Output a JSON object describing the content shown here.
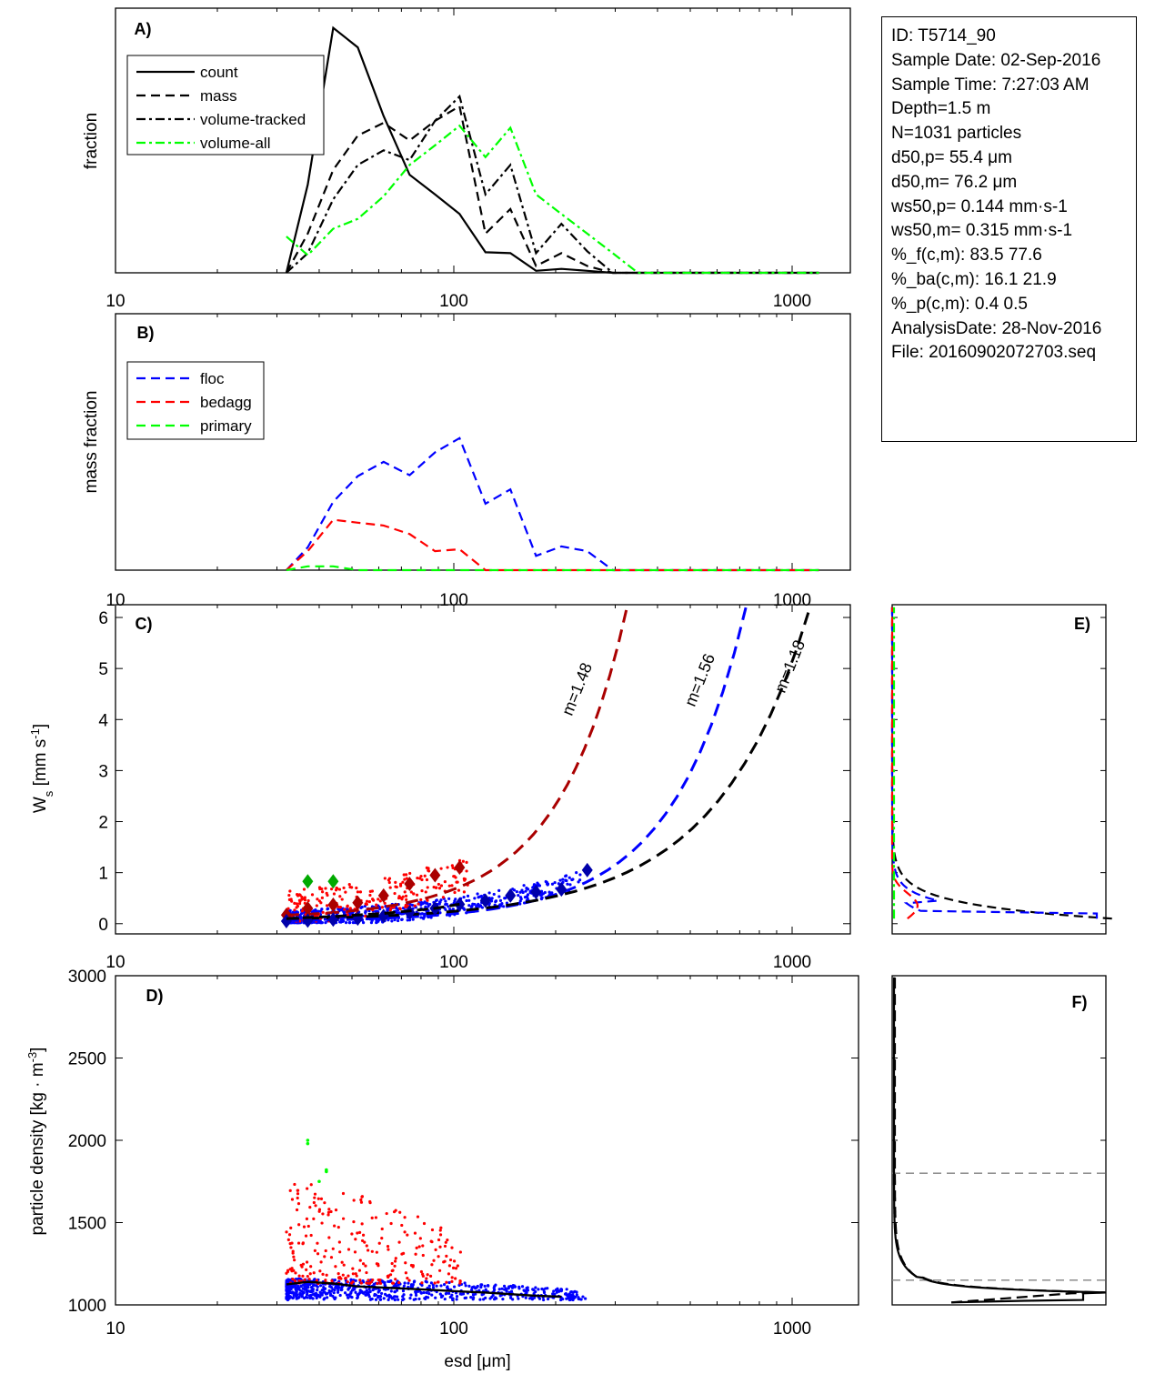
{
  "colors": {
    "black": "#000000",
    "blue": "#0000ff",
    "red": "#ff0000",
    "green": "#00ff00",
    "darkred": "#aa0000",
    "darkblue": "#0000aa",
    "gray": "#808080"
  },
  "info_box": [
    "ID: T5714_90",
    "Sample Date: 02-Sep-2016",
    "Sample Time:  7:27:03 AM",
    "Depth=1.5 m",
    "N=1031 particles",
    "d50,p=  55.4 μm",
    "d50,m=  76.2 μm",
    "ws50,p= 0.144 mm·s-1",
    "ws50,m= 0.315 mm·s-1",
    "%_f(c,m): 83.5 77.6",
    "%_ba(c,m): 16.1 21.9",
    "%_p(c,m): 0.4 0.5",
    "AnalysisDate: 28-Nov-2016",
    "File: 20160902072703.seq"
  ],
  "chart_data": [
    {
      "panel": "A)",
      "type": "line",
      "ylabel": "fraction",
      "xscale": "log",
      "xlim": [
        10,
        1500
      ],
      "ylim": [
        0,
        0.27
      ],
      "xticks": [
        "10",
        "100",
        "1000"
      ],
      "legend": [
        "count",
        "mass",
        "volume-tracked",
        "volume-all"
      ],
      "series": [
        {
          "name": "count",
          "color": "#000000",
          "dash": "solid",
          "x": [
            32,
            37,
            44,
            52,
            62,
            74,
            88,
            104,
            124,
            147,
            175,
            208,
            248,
            295,
            350,
            420,
            500,
            600,
            720,
            860,
            1000,
            1200
          ],
          "values": [
            0,
            0.09,
            0.25,
            0.23,
            0.16,
            0.1,
            0.08,
            0.06,
            0.021,
            0.02,
            0.002,
            0.004,
            0.002,
            0,
            0,
            0,
            0,
            0,
            0,
            0,
            0,
            0
          ]
        },
        {
          "name": "mass",
          "color": "#000000",
          "dash": "dash",
          "x": [
            32,
            37,
            44,
            52,
            62,
            74,
            88,
            104,
            124,
            147,
            175,
            208,
            248,
            295,
            350,
            420,
            500,
            600,
            720,
            860,
            1000,
            1200
          ],
          "values": [
            0,
            0.04,
            0.105,
            0.14,
            0.153,
            0.135,
            0.155,
            0.17,
            0.04,
            0.065,
            0.007,
            0.02,
            0.007,
            0,
            0,
            0,
            0,
            0,
            0,
            0,
            0,
            0
          ]
        },
        {
          "name": "volume-tracked",
          "color": "#000000",
          "dash": "dashdot",
          "x": [
            32,
            37,
            44,
            52,
            62,
            74,
            88,
            104,
            124,
            147,
            175,
            208,
            248,
            295,
            350,
            420,
            500,
            600,
            720,
            860,
            1000,
            1200
          ],
          "values": [
            0,
            0.02,
            0.075,
            0.11,
            0.125,
            0.115,
            0.155,
            0.18,
            0.08,
            0.11,
            0.02,
            0.05,
            0.022,
            0,
            0,
            0,
            0,
            0,
            0,
            0,
            0,
            0
          ]
        },
        {
          "name": "volume-all",
          "color": "#00ff00",
          "dash": "dashdot",
          "x": [
            32,
            37,
            44,
            52,
            62,
            74,
            88,
            104,
            124,
            147,
            175,
            208,
            248,
            295,
            350,
            420,
            500,
            600,
            720,
            860,
            1000,
            1200
          ],
          "values": [
            0.037,
            0.018,
            0.045,
            0.055,
            0.078,
            0.11,
            0.13,
            0.15,
            0.118,
            0.148,
            0.08,
            0.06,
            0.04,
            0.02,
            0,
            0,
            0,
            0,
            0,
            0,
            0,
            0
          ]
        }
      ]
    },
    {
      "panel": "B)",
      "type": "line",
      "ylabel": "mass fraction",
      "xscale": "log",
      "xlim": [
        10,
        1500
      ],
      "ylim": [
        0,
        0.27
      ],
      "xticks": [
        "10",
        "100",
        "1000"
      ],
      "legend": [
        "floc",
        "bedagg",
        "primary"
      ],
      "series": [
        {
          "name": "floc",
          "color": "#0000ff",
          "dash": "dash",
          "x": [
            32,
            37,
            44,
            52,
            62,
            74,
            88,
            104,
            124,
            147,
            175,
            208,
            248,
            295,
            350,
            420,
            500,
            600,
            720,
            860,
            1000,
            1200
          ],
          "values": [
            0,
            0.024,
            0.072,
            0.099,
            0.114,
            0.1,
            0.124,
            0.139,
            0.07,
            0.085,
            0.015,
            0.025,
            0.02,
            0,
            0,
            0,
            0,
            0,
            0,
            0,
            0,
            0
          ]
        },
        {
          "name": "bedagg",
          "color": "#ff0000",
          "dash": "dash",
          "x": [
            32,
            37,
            44,
            52,
            62,
            74,
            88,
            104,
            124,
            147,
            175,
            208,
            248,
            295,
            350,
            420,
            500,
            600,
            720,
            860,
            1000,
            1200
          ],
          "values": [
            0,
            0.02,
            0.053,
            0.05,
            0.047,
            0.038,
            0.02,
            0.022,
            0,
            0,
            0,
            0,
            0,
            0,
            0,
            0,
            0,
            0,
            0,
            0,
            0,
            0
          ]
        },
        {
          "name": "primary",
          "color": "#00ff00",
          "dash": "dash",
          "x": [
            32,
            37,
            44,
            52,
            62,
            74,
            88,
            104,
            124,
            147,
            175,
            208,
            248,
            295,
            350,
            420,
            500,
            600,
            720,
            860,
            1000,
            1200
          ],
          "values": [
            0,
            0.004,
            0.004,
            0,
            0,
            0,
            0,
            0,
            0,
            0,
            0,
            0,
            0,
            0,
            0,
            0,
            0,
            0,
            0,
            0,
            0,
            0
          ]
        }
      ]
    },
    {
      "panel": "C)",
      "type": "scatter",
      "ylabel": "Ws [mm s-1]",
      "xscale": "log",
      "xlim": [
        10,
        1500
      ],
      "ylim": [
        -0.2,
        6.25
      ],
      "xticks": [
        "10",
        "100",
        "1000"
      ],
      "yticks": [
        "0",
        "1",
        "2",
        "3",
        "4",
        "5",
        "6"
      ],
      "fit_curves": [
        {
          "label": "m=1.48",
          "color": "#aa0000",
          "x0": 32,
          "y0": 0.17,
          "x1": 325,
          "y1": 6.2
        },
        {
          "label": "m=1.56",
          "color": "#0000ff",
          "x0": 32,
          "y0": 0.06,
          "x1": 730,
          "y1": 6.2
        },
        {
          "label": "m=1.18",
          "color": "#000000",
          "x0": 32,
          "y0": 0.1,
          "x1": 1130,
          "y1": 6.2
        }
      ],
      "markers": [
        {
          "group": "bedagg",
          "color": "#aa0000",
          "x": [
            32,
            37,
            44,
            52,
            62,
            74,
            88,
            104
          ],
          "values": [
            0.17,
            0.3,
            0.37,
            0.41,
            0.55,
            0.78,
            0.95,
            1.1
          ]
        },
        {
          "group": "floc",
          "color": "#0000aa",
          "x": [
            32,
            37,
            44,
            52,
            62,
            74,
            88,
            104,
            124,
            147,
            175,
            208,
            248
          ],
          "values": [
            0.05,
            0.06,
            0.08,
            0.1,
            0.15,
            0.22,
            0.3,
            0.38,
            0.45,
            0.55,
            0.62,
            0.67,
            1.05
          ]
        },
        {
          "group": "primary",
          "color": "#00aa00",
          "x": [
            37,
            44
          ],
          "values": [
            0.83,
            0.83
          ]
        },
        {
          "group": "count",
          "color": "#000000",
          "x": [
            32,
            37,
            44,
            52,
            62,
            74,
            88,
            104
          ],
          "values": [
            0.1,
            0.12,
            0.14,
            0.17,
            0.2,
            0.25,
            0.3,
            0.38
          ]
        }
      ]
    },
    {
      "panel": "D)",
      "type": "scatter",
      "xlabel": "esd [μm]",
      "ylabel": "particle density [kg · m-3]",
      "xscale": "log",
      "xlim": [
        10,
        1500
      ],
      "ylim": [
        1000,
        3000
      ],
      "xticks": [
        "10",
        "100",
        "1000"
      ],
      "yticks": [
        "1000",
        "1500",
        "2000",
        "2500",
        "3000"
      ],
      "median_line": {
        "x": [
          32,
          37,
          44,
          52,
          62,
          74,
          88,
          104,
          124,
          147,
          175,
          208
        ],
        "values": [
          1125,
          1140,
          1130,
          1112,
          1105,
          1098,
          1090,
          1082,
          1075,
          1065,
          1055,
          1050
        ]
      }
    },
    {
      "panel": "E)",
      "type": "line",
      "note": "settling velocity distribution"
    },
    {
      "panel": "F)",
      "type": "line",
      "note": "density distribution",
      "reference_lines": [
        1800,
        1150
      ]
    }
  ]
}
